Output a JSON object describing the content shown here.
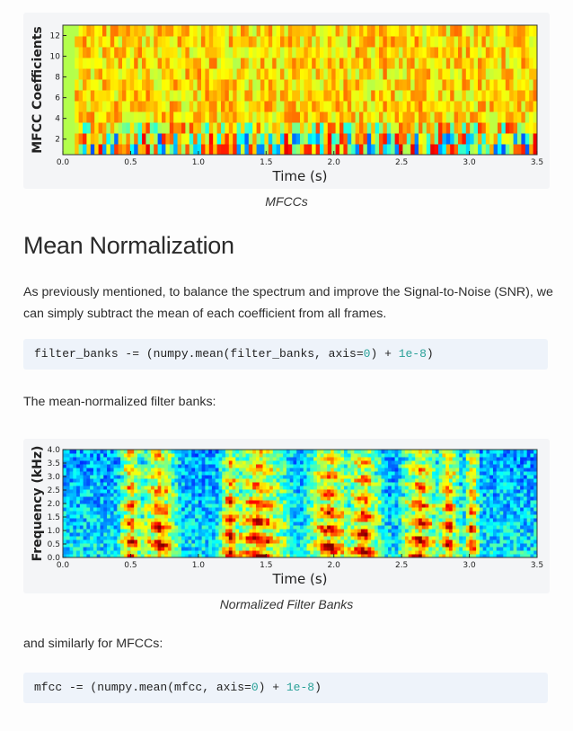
{
  "figure1": {
    "caption": "MFCCs",
    "chart_data": {
      "type": "heatmap",
      "xlabel": "Time (s)",
      "ylabel": "MFCC Coefficients",
      "x_ticks": [
        "0.0",
        "0.5",
        "1.0",
        "1.5",
        "2.0",
        "2.5",
        "3.0",
        "3.5"
      ],
      "y_ticks": [
        "2",
        "4",
        "6",
        "8",
        "10",
        "12"
      ],
      "xlim": [
        0,
        3.5
      ],
      "ylim": [
        0.5,
        13
      ],
      "colormap": "jet"
    }
  },
  "section": {
    "heading": "Mean Normalization",
    "intro": "As previously mentioned, to balance the spectrum and improve the Signal-to-Noise (SNR), we can simply subtract the mean of each coefficient from all frames."
  },
  "code1": {
    "pre": "filter_banks -= (numpy.mean(filter_banks, axis=",
    "n1": "0",
    "mid": ") + ",
    "n2": "1e-8",
    "post": ")"
  },
  "para2": "The mean-normalized filter banks:",
  "figure2": {
    "caption": "Normalized Filter Banks",
    "chart_data": {
      "type": "heatmap",
      "xlabel": "Time (s)",
      "ylabel": "Frequency (kHz)",
      "x_ticks": [
        "0.0",
        "0.5",
        "1.0",
        "1.5",
        "2.0",
        "2.5",
        "3.0",
        "3.5"
      ],
      "y_ticks": [
        "0.0",
        "0.5",
        "1.0",
        "1.5",
        "2.0",
        "2.5",
        "3.0",
        "3.5",
        "4.0"
      ],
      "xlim": [
        0,
        3.5
      ],
      "ylim": [
        0,
        4
      ],
      "colormap": "jet"
    }
  },
  "para3": "and similarly for MFCCs:",
  "code2": {
    "pre": "mfcc -= (numpy.mean(mfcc, axis=",
    "n1": "0",
    "mid": ") + ",
    "n2": "1e-8",
    "post": ")"
  }
}
